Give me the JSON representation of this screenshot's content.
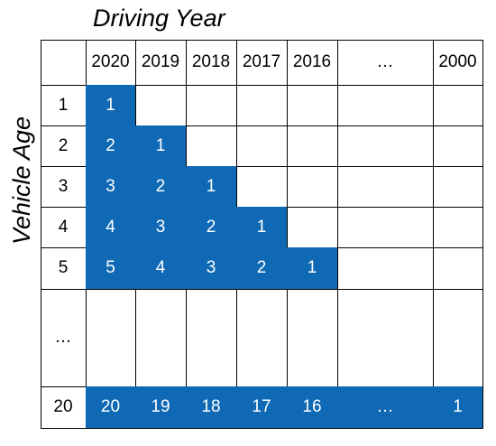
{
  "title_top": "Driving Year",
  "title_side": "Vehicle Age",
  "colors": {
    "filled": "#0f69b4",
    "filled_text": "#ffffff",
    "grid": "#000000"
  },
  "columns": [
    "2020",
    "2019",
    "2018",
    "2017",
    "2016",
    "…",
    "2000"
  ],
  "rows": [
    {
      "label": "1",
      "cells": [
        "1",
        "",
        "",
        "",
        "",
        "",
        ""
      ]
    },
    {
      "label": "2",
      "cells": [
        "2",
        "1",
        "",
        "",
        "",
        "",
        ""
      ]
    },
    {
      "label": "3",
      "cells": [
        "3",
        "2",
        "1",
        "",
        "",
        "",
        ""
      ]
    },
    {
      "label": "4",
      "cells": [
        "4",
        "3",
        "2",
        "1",
        "",
        "",
        ""
      ]
    },
    {
      "label": "5",
      "cells": [
        "5",
        "4",
        "3",
        "2",
        "1",
        "",
        ""
      ]
    },
    {
      "label": "…",
      "cells": [
        "",
        "",
        "",
        "",
        "",
        "",
        ""
      ]
    },
    {
      "label": "20",
      "cells": [
        "20",
        "19",
        "18",
        "17",
        "16",
        "…",
        "1"
      ]
    }
  ],
  "filled": [
    [
      true,
      false,
      false,
      false,
      false,
      false,
      false
    ],
    [
      true,
      true,
      false,
      false,
      false,
      false,
      false
    ],
    [
      true,
      true,
      true,
      false,
      false,
      false,
      false
    ],
    [
      true,
      true,
      true,
      true,
      false,
      false,
      false
    ],
    [
      true,
      true,
      true,
      true,
      true,
      false,
      false
    ],
    [
      false,
      false,
      false,
      false,
      false,
      false,
      false
    ],
    [
      true,
      true,
      true,
      true,
      true,
      true,
      true
    ]
  ]
}
